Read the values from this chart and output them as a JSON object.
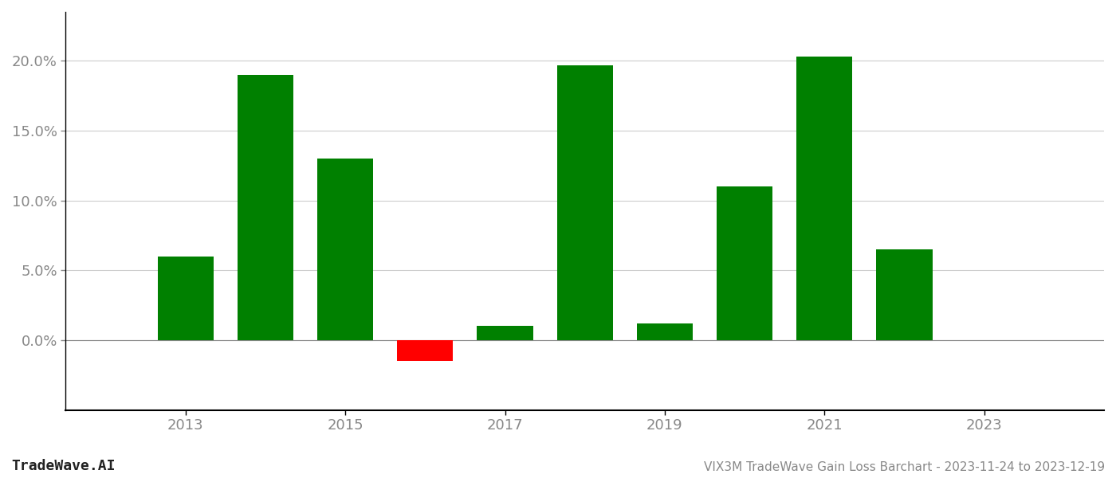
{
  "years": [
    2013,
    2014,
    2015,
    2016,
    2017,
    2018,
    2019,
    2020,
    2021,
    2022
  ],
  "values": [
    0.06,
    0.19,
    0.13,
    -0.015,
    0.01,
    0.197,
    0.012,
    0.11,
    0.203,
    0.065
  ],
  "bar_colors": [
    "#008000",
    "#008000",
    "#008000",
    "#ff0000",
    "#008000",
    "#008000",
    "#008000",
    "#008000",
    "#008000",
    "#008000"
  ],
  "title": "VIX3M TradeWave Gain Loss Barchart - 2023-11-24 to 2023-12-19",
  "watermark": "TradeWave.AI",
  "ylim_min": -0.05,
  "ylim_max": 0.235,
  "yticks": [
    0.0,
    0.05,
    0.1,
    0.15,
    0.2
  ],
  "xlim_min": 2011.5,
  "xlim_max": 2024.5,
  "xticks": [
    2013,
    2015,
    2017,
    2019,
    2021,
    2023
  ],
  "background_color": "#ffffff",
  "bar_width": 0.7,
  "grid_color": "#cccccc",
  "title_fontsize": 11,
  "watermark_fontsize": 13,
  "tick_fontsize": 13,
  "axis_color": "#888888"
}
